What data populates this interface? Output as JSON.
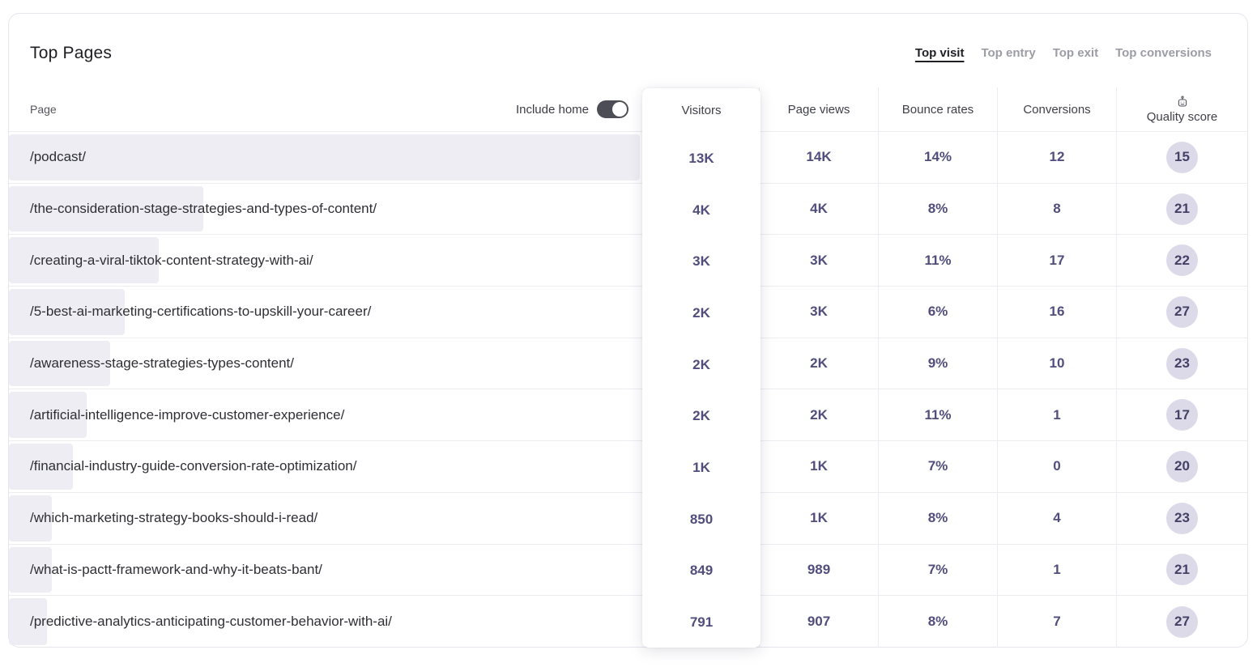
{
  "header": {
    "title": "Top Pages",
    "tabs": [
      {
        "label": "Top visit",
        "active": true
      },
      {
        "label": "Top entry",
        "active": false
      },
      {
        "label": "Top exit",
        "active": false
      },
      {
        "label": "Top conversions",
        "active": false
      }
    ]
  },
  "table": {
    "page_header": "Page",
    "include_home_label": "Include home",
    "include_home_on": true,
    "columns": [
      "Visitors",
      "Page views",
      "Bounce rates",
      "Conversions",
      "Quality score"
    ],
    "quality_icon": "robot-icon",
    "rows": [
      {
        "page": "/podcast/",
        "visitors": "13K",
        "page_views": "14K",
        "bounce_rate": "14%",
        "conversions": "12",
        "quality_score": "15",
        "bar_pct": 100
      },
      {
        "page": "/the-consideration-stage-strategies-and-types-of-content/",
        "visitors": "4K",
        "page_views": "4K",
        "bounce_rate": "8%",
        "conversions": "8",
        "quality_score": "21",
        "bar_pct": 30.8
      },
      {
        "page": "/creating-a-viral-tiktok-content-strategy-with-ai/",
        "visitors": "3K",
        "page_views": "3K",
        "bounce_rate": "11%",
        "conversions": "17",
        "quality_score": "22",
        "bar_pct": 23.7
      },
      {
        "page": "/5-best-ai-marketing-certifications-to-upskill-your-career/",
        "visitors": "2K",
        "page_views": "3K",
        "bounce_rate": "6%",
        "conversions": "16",
        "quality_score": "27",
        "bar_pct": 18.3
      },
      {
        "page": "/awareness-stage-strategies-types-content/",
        "visitors": "2K",
        "page_views": "2K",
        "bounce_rate": "9%",
        "conversions": "10",
        "quality_score": "23",
        "bar_pct": 16.0
      },
      {
        "page": "/artificial-intelligence-improve-customer-experience/",
        "visitors": "2K",
        "page_views": "2K",
        "bounce_rate": "11%",
        "conversions": "1",
        "quality_score": "17",
        "bar_pct": 12.3
      },
      {
        "page": "/financial-industry-guide-conversion-rate-optimization/",
        "visitors": "1K",
        "page_views": "1K",
        "bounce_rate": "7%",
        "conversions": "0",
        "quality_score": "20",
        "bar_pct": 10.1
      },
      {
        "page": "/which-marketing-strategy-books-should-i-read/",
        "visitors": "850",
        "page_views": "1K",
        "bounce_rate": "8%",
        "conversions": "4",
        "quality_score": "23",
        "bar_pct": 6.8
      },
      {
        "page": "/what-is-pactt-framework-and-why-it-beats-bant/",
        "visitors": "849",
        "page_views": "989",
        "bounce_rate": "7%",
        "conversions": "1",
        "quality_score": "21",
        "bar_pct": 6.8
      },
      {
        "page": "/predictive-analytics-anticipating-customer-behavior-with-ai/",
        "visitors": "791",
        "page_views": "907",
        "bounce_rate": "8%",
        "conversions": "7",
        "quality_score": "27",
        "bar_pct": 6.0
      }
    ]
  },
  "colors": {
    "accent": "#514d7c",
    "badge_bg": "#dcdae8",
    "bar_bg": "#efedf4",
    "row_border": "#ececf1",
    "card_border": "#e6e5ec",
    "toggle_on": "#4d4d56",
    "inactive_tab": "#9c9ca6"
  }
}
